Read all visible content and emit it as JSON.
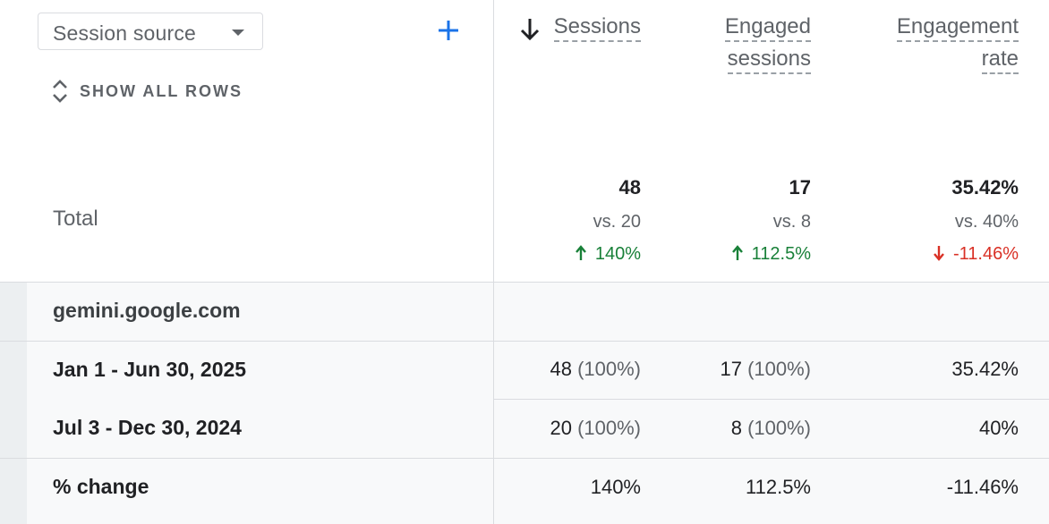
{
  "header": {
    "dimension_select": "Session source",
    "show_all_rows": "SHOW ALL ROWS",
    "total_label": "Total"
  },
  "columns": [
    {
      "label_line1": "Sessions",
      "label_line2": "",
      "sorted": "descending"
    },
    {
      "label_line1": "Engaged",
      "label_line2": "sessions"
    },
    {
      "label_line1": "Engagement",
      "label_line2": "rate"
    }
  ],
  "totals": [
    {
      "value": "48",
      "vs": "vs. 20",
      "change": "140%",
      "direction": "up"
    },
    {
      "value": "17",
      "vs": "vs. 8",
      "change": "112.5%",
      "direction": "up"
    },
    {
      "value": "35.42%",
      "vs": "vs. 40%",
      "change": "-11.46%",
      "direction": "down"
    }
  ],
  "group": {
    "source": "gemini.google.com",
    "rows": [
      {
        "label": "Jan 1 - Jun 30, 2025",
        "sessions": "48",
        "sessions_pct": "(100%)",
        "engaged": "17",
        "engaged_pct": "(100%)",
        "rate": "35.42%"
      },
      {
        "label": "Jul 3 - Dec 30, 2024",
        "sessions": "20",
        "sessions_pct": "(100%)",
        "engaged": "8",
        "engaged_pct": "(100%)",
        "rate": "40%"
      },
      {
        "label": "% change",
        "sessions": "140%",
        "sessions_pct": "",
        "engaged": "112.5%",
        "engaged_pct": "",
        "rate": "-11.46%"
      }
    ]
  },
  "colors": {
    "positive": "#188038",
    "negative": "#d93025",
    "accent": "#1a73e8"
  },
  "icons": [
    "dropdown-caret-icon",
    "add-icon",
    "expand-collapse-icon",
    "sort-down-arrow-icon",
    "arrow-up-icon",
    "arrow-down-icon"
  ]
}
